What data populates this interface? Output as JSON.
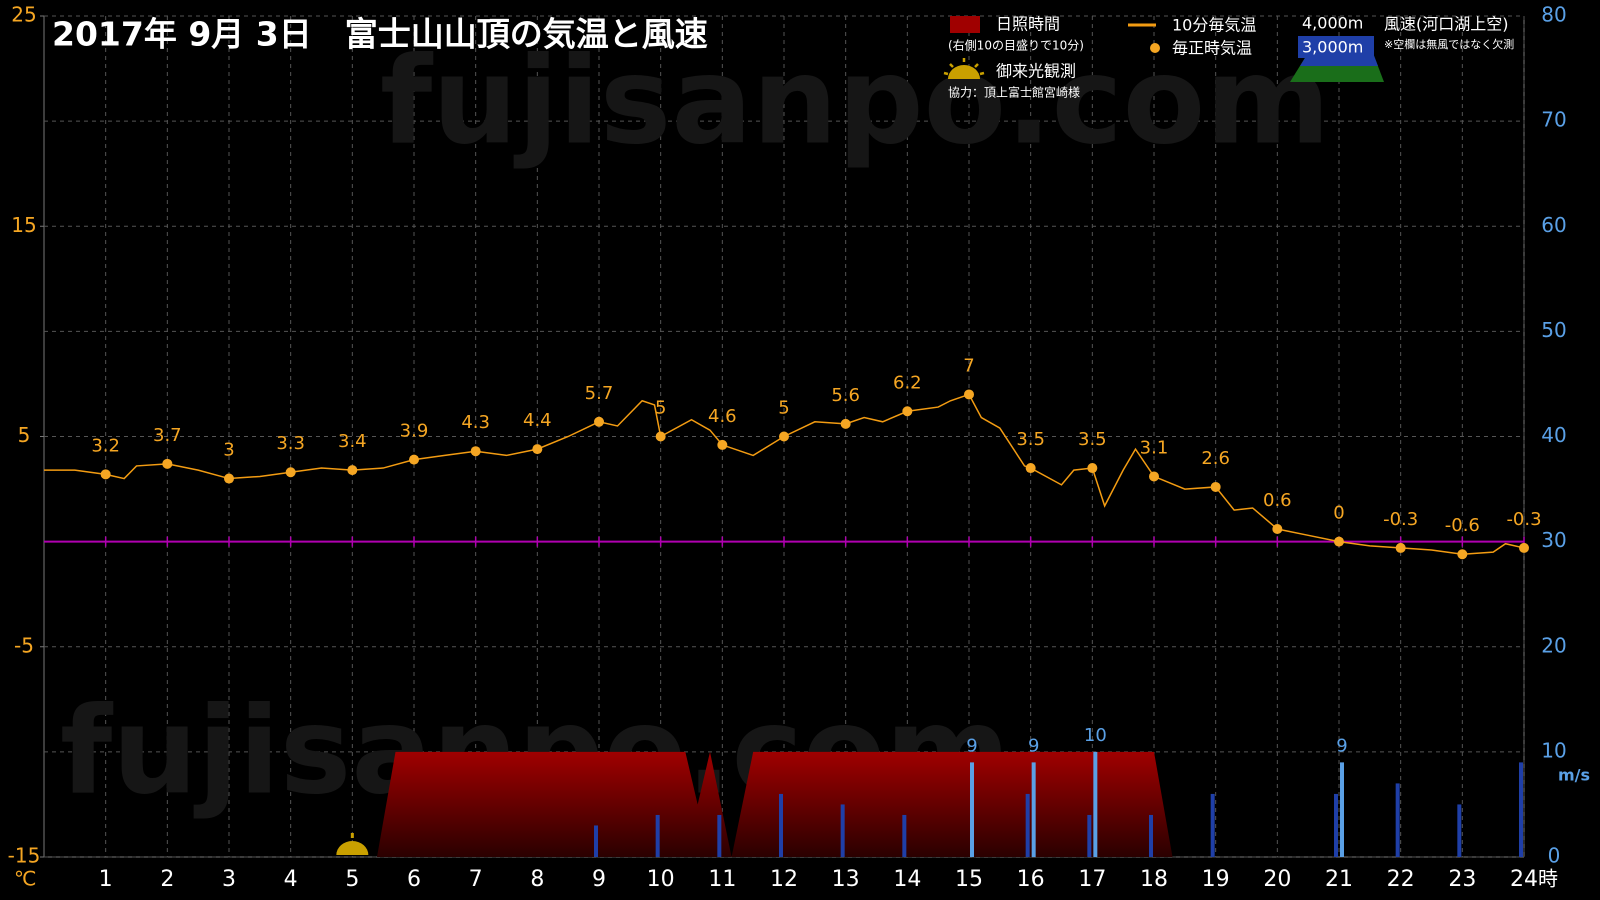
{
  "chart_data": {
    "type": "combo",
    "title": "2017年 9月 3日　富士山山頂の気温と風速",
    "watermark": "fujisanpo.com",
    "y_label": "℃",
    "x_label": "時",
    "y2_label": "m/s",
    "xlim": [
      0,
      24
    ],
    "xticks": [
      1,
      2,
      3,
      4,
      5,
      6,
      7,
      8,
      9,
      10,
      11,
      12,
      13,
      14,
      15,
      16,
      17,
      18,
      19,
      20,
      21,
      22,
      23,
      24
    ],
    "ylim": [
      -15,
      25
    ],
    "yticks": [
      25,
      15,
      5,
      -5,
      -15
    ],
    "y2lim": [
      0,
      80
    ],
    "y2ticks": [
      80,
      70,
      60,
      50,
      40,
      30,
      20,
      10,
      0
    ],
    "grid": true,
    "zero_line": {
      "value": 0,
      "color": "#b000b0"
    },
    "sunrise_x": 5,
    "annotations": {
      "sunshine_note": "(右側10の目盛りで10分)",
      "sunrise_label": "御来光観測",
      "credit": "協力：頂上富士館宮崎様",
      "wind_title": "風速(河口湖上空)",
      "wind_note": "※空欄は無風ではなく欠測"
    },
    "series": [
      {
        "name": "10分毎気温",
        "type": "line",
        "color": "#f39c12",
        "x": [
          0,
          0.5,
          1,
          1.3,
          1.5,
          2,
          2.5,
          3,
          3.5,
          4,
          4.5,
          5,
          5.5,
          6,
          6.5,
          7,
          7.5,
          8,
          8.5,
          9,
          9.3,
          9.7,
          9.9,
          10,
          10.5,
          10.8,
          11,
          11.5,
          12,
          12.5,
          13,
          13.3,
          13.6,
          14,
          14.5,
          14.7,
          15,
          15.2,
          15.5,
          15.9,
          16,
          16.5,
          16.7,
          17,
          17.2,
          17.5,
          17.7,
          18,
          18.5,
          19,
          19.3,
          19.6,
          20,
          20.5,
          21,
          21.5,
          22,
          22.5,
          23,
          23.5,
          23.7,
          24
        ],
        "values": [
          3.4,
          3.4,
          3.2,
          3.0,
          3.6,
          3.7,
          3.4,
          3.0,
          3.1,
          3.3,
          3.5,
          3.4,
          3.5,
          3.9,
          4.1,
          4.3,
          4.1,
          4.4,
          5.0,
          5.7,
          5.5,
          6.7,
          6.5,
          5,
          5.8,
          5.3,
          4.6,
          4.1,
          5,
          5.7,
          5.6,
          5.9,
          5.7,
          6.2,
          6.4,
          6.7,
          7,
          5.9,
          5.4,
          3.6,
          3.5,
          2.7,
          3.4,
          3.5,
          1.7,
          3.4,
          4.4,
          3.1,
          2.5,
          2.6,
          1.5,
          1.6,
          0.6,
          0.3,
          0,
          -0.2,
          -0.3,
          -0.4,
          -0.6,
          -0.5,
          -0.1,
          -0.3
        ]
      },
      {
        "name": "毎正時気温",
        "type": "scatter",
        "color": "#f5a623",
        "labels": true,
        "x": [
          1,
          2,
          3,
          4,
          5,
          6,
          7,
          8,
          9,
          10,
          11,
          12,
          13,
          14,
          15,
          16,
          17,
          18,
          19,
          20,
          21,
          22,
          23,
          24
        ],
        "values": [
          3.2,
          3.7,
          3,
          3.3,
          3.4,
          3.9,
          4.3,
          4.4,
          5.7,
          5,
          4.6,
          5,
          5.6,
          6.2,
          7,
          3.5,
          3.5,
          3.1,
          2.6,
          0.6,
          0,
          -0.3,
          -0.6,
          -0.3
        ]
      },
      {
        "name": "日照時間",
        "type": "area",
        "axis": "y2",
        "color": "#a00000",
        "x": [
          5.4,
          5.7,
          10.4,
          10.6,
          10.8,
          11.15,
          11.5,
          18.0,
          18.3
        ],
        "values": [
          0,
          10,
          10,
          5,
          10,
          0,
          10,
          10,
          0
        ]
      },
      {
        "name": "3,000m",
        "type": "bar",
        "axis": "y2",
        "color": "#1f3fa8",
        "offset": -1,
        "x": [
          1,
          2,
          3,
          4,
          5,
          6,
          7,
          8,
          9,
          10,
          11,
          12,
          13,
          14,
          15,
          16,
          17,
          18,
          19,
          20,
          21,
          22,
          23,
          24
        ],
        "values": [
          null,
          null,
          null,
          null,
          null,
          null,
          null,
          null,
          3,
          4,
          4,
          6,
          5,
          4,
          null,
          6,
          4,
          4,
          6,
          null,
          6,
          7,
          5,
          9
        ]
      },
      {
        "name": "4,000m",
        "type": "bar",
        "axis": "y2",
        "color": "#5aa0e6",
        "offset": 1,
        "labels": true,
        "x": [
          1,
          2,
          3,
          4,
          5,
          6,
          7,
          8,
          9,
          10,
          11,
          12,
          13,
          14,
          15,
          16,
          17,
          18,
          19,
          20,
          21,
          22,
          23,
          24
        ],
        "values": [
          null,
          null,
          null,
          null,
          null,
          null,
          null,
          null,
          null,
          null,
          null,
          null,
          null,
          null,
          9,
          9,
          10,
          null,
          null,
          null,
          9,
          null,
          null,
          null
        ]
      }
    ]
  }
}
